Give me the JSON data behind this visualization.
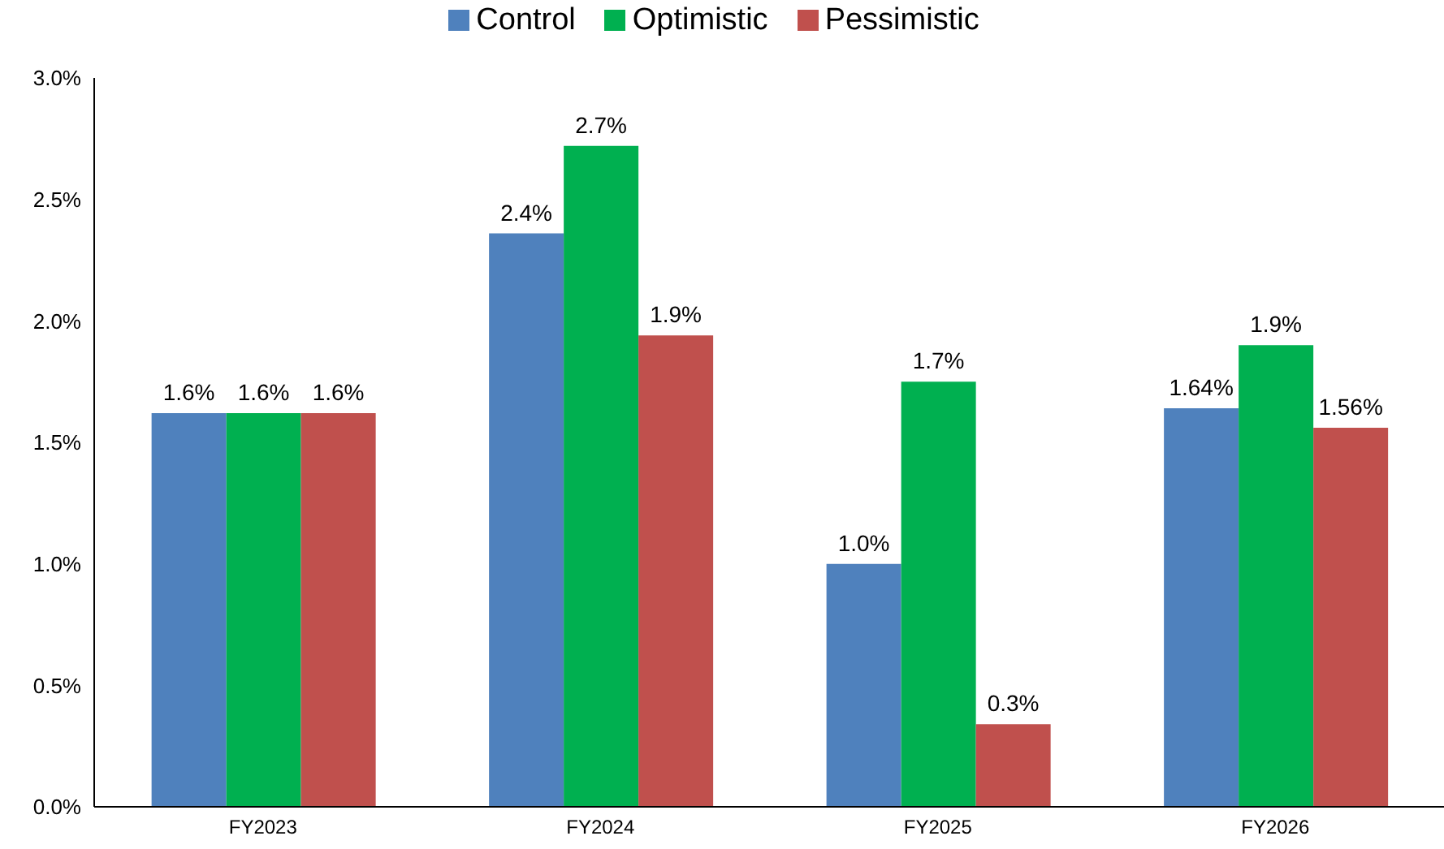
{
  "chart_data": {
    "type": "bar",
    "categories": [
      "FY2023",
      "FY2024",
      "FY2025",
      "FY2026"
    ],
    "series": [
      {
        "name": "Control",
        "color": "#4f81bd",
        "values": [
          1.62,
          2.36,
          1.0,
          1.64
        ],
        "value_labels": [
          "1.6%",
          "2.4%",
          "1.0%",
          "1.64%"
        ]
      },
      {
        "name": "Optimistic",
        "color": "#00b050",
        "values": [
          1.62,
          2.72,
          1.75,
          1.9
        ],
        "value_labels": [
          "1.6%",
          "2.7%",
          "1.7%",
          "1.9%"
        ]
      },
      {
        "name": "Pessimistic",
        "color": "#c0504d",
        "values": [
          1.62,
          1.94,
          0.34,
          1.56
        ],
        "value_labels": [
          "1.6%",
          "1.9%",
          "0.3%",
          "1.56%"
        ]
      }
    ],
    "ylim": [
      0,
      3
    ],
    "yticks": [
      {
        "value": 0,
        "label": "0.0%"
      },
      {
        "value": 0.5,
        "label": "0.5%"
      },
      {
        "value": 1,
        "label": "1.0%"
      },
      {
        "value": 1.5,
        "label": "1.5%"
      },
      {
        "value": 2,
        "label": "2.0%"
      },
      {
        "value": 2.5,
        "label": "2.5%"
      },
      {
        "value": 3,
        "label": "3.0%"
      }
    ],
    "legend": "top"
  }
}
